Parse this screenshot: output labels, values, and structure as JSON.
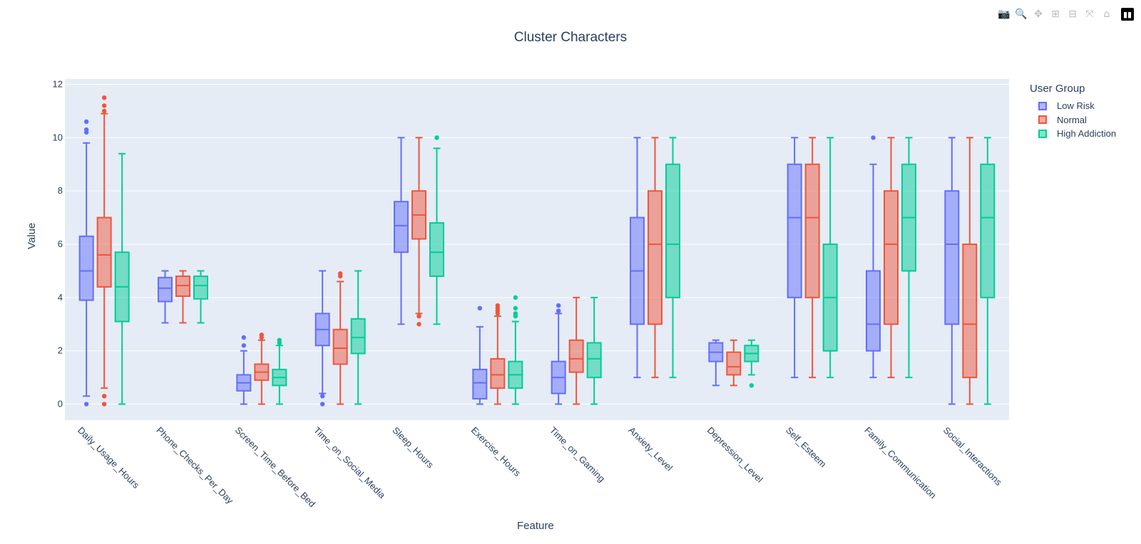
{
  "toolbar": {
    "buttons": [
      {
        "name": "camera-icon",
        "glyph": "📷",
        "active": false
      },
      {
        "name": "zoom-icon",
        "glyph": "🔍",
        "active": true
      },
      {
        "name": "pan-icon",
        "glyph": "✥",
        "active": false
      },
      {
        "name": "zoom-in-icon",
        "glyph": "⊞",
        "active": false
      },
      {
        "name": "zoom-out-icon",
        "glyph": "⊟",
        "active": false
      },
      {
        "name": "autoscale-icon",
        "glyph": "⤧",
        "active": false
      },
      {
        "name": "home-icon",
        "glyph": "⌂",
        "active": false
      }
    ],
    "logo": "plotly-logo-icon"
  },
  "chart_data": {
    "type": "box",
    "title": "Cluster Characters",
    "xlabel": "Feature",
    "ylabel": "Value",
    "ylim": [
      -0.6,
      12.2
    ],
    "yticks": [
      0,
      2,
      4,
      6,
      8,
      10,
      12
    ],
    "grid": true,
    "legend": {
      "title": "User Group",
      "placement": "right"
    },
    "categories": [
      "Daily_Usage_Hours",
      "Phone_Checks_Per_Day",
      "Screen_Time_Before_Bed",
      "Time_on_Social_Media",
      "Sleep_Hours",
      "Exercise_Hours",
      "Time_on_Gaming",
      "Anxiety_Level",
      "Depression_Level",
      "Self_Esteem",
      "Family_Communication",
      "Social_Interactions"
    ],
    "series": [
      {
        "name": "Low Risk",
        "color": "#636efa",
        "boxes": [
          {
            "lower": 0.3,
            "q1": 3.9,
            "median": 5.0,
            "q3": 6.3,
            "upper": 9.8,
            "outliers": [
              0,
              10.2,
              10.3,
              10.6
            ]
          },
          {
            "lower": 3.05,
            "q1": 3.85,
            "median": 4.35,
            "q3": 4.75,
            "upper": 5.0,
            "outliers": []
          },
          {
            "lower": 0,
            "q1": 0.5,
            "median": 0.8,
            "q3": 1.1,
            "upper": 2.0,
            "outliers": [
              2.2,
              2.5
            ]
          },
          {
            "lower": 0.4,
            "q1": 2.2,
            "median": 2.8,
            "q3": 3.4,
            "upper": 5.0,
            "outliers": [
              0,
              0.3
            ]
          },
          {
            "lower": 3.0,
            "q1": 5.7,
            "median": 6.7,
            "q3": 7.6,
            "upper": 10.0,
            "outliers": []
          },
          {
            "lower": 0,
            "q1": 0.2,
            "median": 0.8,
            "q3": 1.3,
            "upper": 2.9,
            "outliers": [
              3.6
            ]
          },
          {
            "lower": 0,
            "q1": 0.4,
            "median": 1.0,
            "q3": 1.6,
            "upper": 3.4,
            "outliers": [
              3.5,
              3.7
            ]
          },
          {
            "lower": 1,
            "q1": 3,
            "median": 5,
            "q3": 7,
            "upper": 10,
            "outliers": []
          },
          {
            "lower": 0.7,
            "q1": 1.6,
            "median": 1.95,
            "q3": 2.3,
            "upper": 2.4,
            "outliers": []
          },
          {
            "lower": 1,
            "q1": 4,
            "median": 7,
            "q3": 9,
            "upper": 10,
            "outliers": []
          },
          {
            "lower": 1,
            "q1": 2,
            "median": 3,
            "q3": 5,
            "upper": 9,
            "outliers": [
              10
            ]
          },
          {
            "lower": 0,
            "q1": 3,
            "median": 6,
            "q3": 8,
            "upper": 10,
            "outliers": []
          }
        ]
      },
      {
        "name": "Normal",
        "color": "#ef553b",
        "boxes": [
          {
            "lower": 0.6,
            "q1": 4.4,
            "median": 5.6,
            "q3": 7.0,
            "upper": 10.9,
            "outliers": [
              0,
              0.3,
              11.0,
              11.2,
              11.5
            ]
          },
          {
            "lower": 3.05,
            "q1": 4.05,
            "median": 4.45,
            "q3": 4.8,
            "upper": 5.0,
            "outliers": []
          },
          {
            "lower": 0,
            "q1": 0.9,
            "median": 1.2,
            "q3": 1.5,
            "upper": 2.4,
            "outliers": [
              2.5,
              2.6
            ]
          },
          {
            "lower": 0,
            "q1": 1.5,
            "median": 2.1,
            "q3": 2.8,
            "upper": 4.6,
            "outliers": [
              4.8,
              4.9
            ]
          },
          {
            "lower": 3.4,
            "q1": 6.2,
            "median": 7.1,
            "q3": 8.0,
            "upper": 10.0,
            "outliers": [
              3.0,
              3.3
            ]
          },
          {
            "lower": 0,
            "q1": 0.6,
            "median": 1.1,
            "q3": 1.7,
            "upper": 3.3,
            "outliers": [
              3.4,
              3.5,
              3.6,
              3.7
            ]
          },
          {
            "lower": 0,
            "q1": 1.2,
            "median": 1.7,
            "q3": 2.4,
            "upper": 4.0,
            "outliers": []
          },
          {
            "lower": 1,
            "q1": 3,
            "median": 6,
            "q3": 8,
            "upper": 10,
            "outliers": []
          },
          {
            "lower": 0.7,
            "q1": 1.1,
            "median": 1.4,
            "q3": 1.95,
            "upper": 2.4,
            "outliers": []
          },
          {
            "lower": 1,
            "q1": 4,
            "median": 7,
            "q3": 9,
            "upper": 10,
            "outliers": []
          },
          {
            "lower": 1,
            "q1": 3,
            "median": 6,
            "q3": 8,
            "upper": 10,
            "outliers": []
          },
          {
            "lower": 0,
            "q1": 1,
            "median": 3,
            "q3": 6,
            "upper": 10,
            "outliers": []
          }
        ]
      },
      {
        "name": "High Addiction",
        "color": "#00cc96",
        "boxes": [
          {
            "lower": 0,
            "q1": 3.1,
            "median": 4.4,
            "q3": 5.7,
            "upper": 9.4,
            "outliers": []
          },
          {
            "lower": 3.05,
            "q1": 3.95,
            "median": 4.45,
            "q3": 4.8,
            "upper": 5.0,
            "outliers": []
          },
          {
            "lower": 0,
            "q1": 0.7,
            "median": 1.0,
            "q3": 1.3,
            "upper": 2.2,
            "outliers": [
              2.3,
              2.4
            ]
          },
          {
            "lower": 0,
            "q1": 1.9,
            "median": 2.5,
            "q3": 3.2,
            "upper": 5.0,
            "outliers": []
          },
          {
            "lower": 3.0,
            "q1": 4.8,
            "median": 5.7,
            "q3": 6.8,
            "upper": 9.6,
            "outliers": [
              10.0
            ]
          },
          {
            "lower": 0,
            "q1": 0.6,
            "median": 1.1,
            "q3": 1.6,
            "upper": 3.1,
            "outliers": [
              3.3,
              3.4,
              3.6,
              4.0
            ]
          },
          {
            "lower": 0,
            "q1": 1.0,
            "median": 1.7,
            "q3": 2.3,
            "upper": 4.0,
            "outliers": []
          },
          {
            "lower": 1,
            "q1": 4,
            "median": 6,
            "q3": 9,
            "upper": 10,
            "outliers": []
          },
          {
            "lower": 1.1,
            "q1": 1.6,
            "median": 1.9,
            "q3": 2.2,
            "upper": 2.4,
            "outliers": [
              0.7
            ]
          },
          {
            "lower": 1,
            "q1": 2,
            "median": 4,
            "q3": 6,
            "upper": 10,
            "outliers": []
          },
          {
            "lower": 1,
            "q1": 5,
            "median": 7,
            "q3": 9,
            "upper": 10,
            "outliers": []
          },
          {
            "lower": 0,
            "q1": 4,
            "median": 7,
            "q3": 9,
            "upper": 10,
            "outliers": []
          }
        ]
      }
    ]
  }
}
